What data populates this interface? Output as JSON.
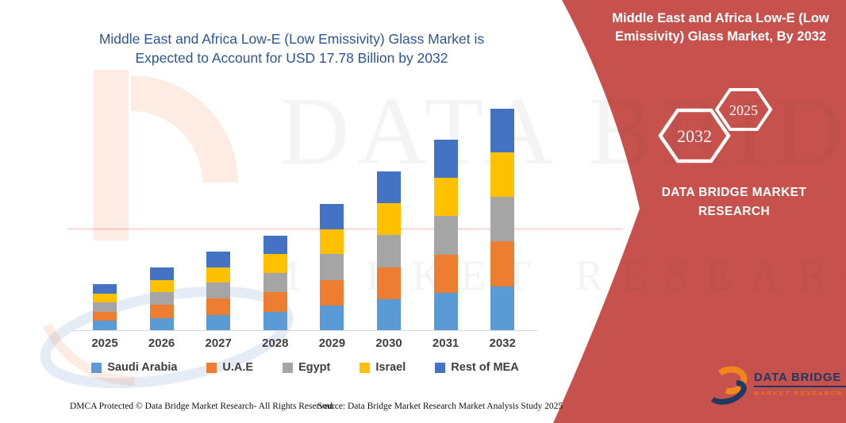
{
  "colors": {
    "banner_red": "#C7514D",
    "heading_blue": "#2E5596",
    "axis_label_gray": "#404040",
    "logo_navy": "#1F3864",
    "logo_orange": "#E87722"
  },
  "heading": {
    "line1": "Middle East and Africa Low-E (Low Emissivity) Glass Market is",
    "line2": "Expected to Account for USD 17.78 Billion by 2032"
  },
  "banner": {
    "title_line1": "Middle East and Africa Low-E (Low",
    "title_line2": "Emissivity) Glass Market, By 2032",
    "hexagon_back_year": "2032",
    "hexagon_front_year": "2025",
    "brand_line1": "DATA BRIDGE MARKET",
    "brand_line2": "RESEARCH"
  },
  "logo": {
    "name": "DATA BRIDGE",
    "subtitle": "MARKET RESEARCH"
  },
  "watermark": {
    "line1": "DATA BRIDGE",
    "line2": "MARKET RESEARCH"
  },
  "footer": {
    "dmca": "DMCA Protected © Data Bridge Market Research- All Rights Reserved.",
    "source": "Source: Data Bridge Market Research Market Analysis Study 2025"
  },
  "chart_data": {
    "type": "bar",
    "stacked": true,
    "title": "Middle East and Africa Low-E (Low Emissivity) Glass Market is Expected to Account for USD 17.78 Billion by 2032",
    "xlabel": "",
    "ylabel": "",
    "values_unit": "USD Billion",
    "ylim": [
      0,
      18
    ],
    "grid": false,
    "legend_position": "bottom",
    "categories": [
      "2025",
      "2026",
      "2027",
      "2028",
      "2029",
      "2030",
      "2031",
      "2032"
    ],
    "totals": [
      3.72,
      5.01,
      6.29,
      7.57,
      10.14,
      12.71,
      15.27,
      17.78
    ],
    "total_2032_callout": "USD 17.78 Billion",
    "series": [
      {
        "name": "Saudi Arabia",
        "color": "#5B9BD5",
        "values": [
          0.74,
          0.98,
          1.22,
          1.48,
          2.0,
          2.5,
          3.02,
          3.52
        ]
      },
      {
        "name": "U.A.E",
        "color": "#ED7D31",
        "values": [
          0.72,
          1.05,
          1.3,
          1.6,
          2.02,
          2.56,
          3.05,
          3.6
        ]
      },
      {
        "name": "Egypt",
        "color": "#A5A5A5",
        "values": [
          0.78,
          1.0,
          1.28,
          1.5,
          2.08,
          2.6,
          3.08,
          3.58
        ]
      },
      {
        "name": "Israel",
        "color": "#FFC000",
        "values": [
          0.72,
          1.0,
          1.25,
          1.52,
          2.0,
          2.52,
          3.06,
          3.55
        ]
      },
      {
        "name": "Rest of MEA",
        "color": "#4472C4",
        "values": [
          0.76,
          0.98,
          1.24,
          1.47,
          2.04,
          2.53,
          3.06,
          3.53
        ]
      }
    ]
  }
}
